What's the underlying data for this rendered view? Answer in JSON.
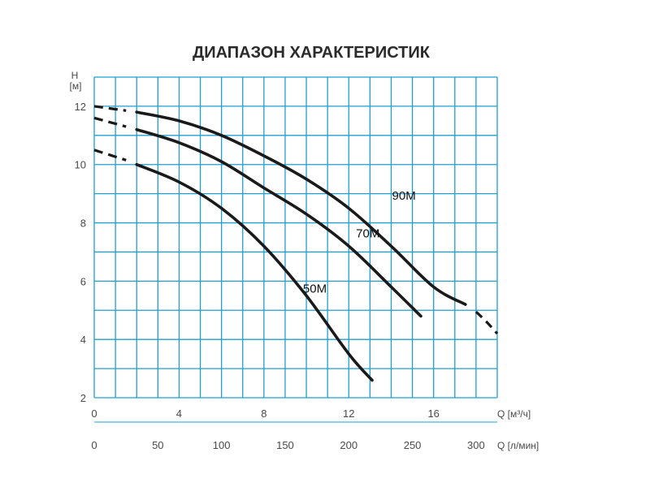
{
  "chart_data": {
    "type": "line",
    "title": "ДИАПАЗОН ХАРАКТЕРИСТИК",
    "ylabel_symbol": "H",
    "ylabel_unit": "[м]",
    "xlabel_top": "Q [м³/ч]",
    "xlabel_bottom": "Q [л/мин]",
    "xlim": [
      0,
      19
    ],
    "ylim": [
      2,
      13
    ],
    "grid": true,
    "x_ticks": [
      {
        "value": 0,
        "label": "0"
      },
      {
        "value": 4,
        "label": "4"
      },
      {
        "value": 8,
        "label": "8"
      },
      {
        "value": 12,
        "label": "12"
      },
      {
        "value": 16,
        "label": "16"
      }
    ],
    "x2_ticks": [
      {
        "value": 0,
        "label": "0"
      },
      {
        "value": 50,
        "label": "50"
      },
      {
        "value": 100,
        "label": "100"
      },
      {
        "value": 150,
        "label": "150"
      },
      {
        "value": 200,
        "label": "200"
      },
      {
        "value": 250,
        "label": "250"
      },
      {
        "value": 300,
        "label": "300"
      }
    ],
    "y_ticks": [
      {
        "value": 2,
        "label": "2"
      },
      {
        "value": 4,
        "label": "4"
      },
      {
        "value": 6,
        "label": "6"
      },
      {
        "value": 8,
        "label": "8"
      },
      {
        "value": 10,
        "label": "10"
      },
      {
        "value": 12,
        "label": "12"
      }
    ],
    "series": [
      {
        "name": "90M",
        "dashed_start": [
          [
            0,
            12.0
          ],
          [
            1.5,
            11.85
          ]
        ],
        "solid": [
          [
            2.0,
            11.8
          ],
          [
            4,
            11.5
          ],
          [
            6,
            11.0
          ],
          [
            8,
            10.3
          ],
          [
            10,
            9.5
          ],
          [
            12,
            8.5
          ],
          [
            14,
            7.2
          ],
          [
            16,
            5.8
          ],
          [
            17.5,
            5.2
          ]
        ],
        "dashed_end": [
          [
            18.0,
            4.95
          ],
          [
            18.5,
            4.6
          ],
          [
            19.0,
            4.2
          ]
        ],
        "label_at": [
          14.6,
          8.8
        ],
        "color": "#1a1a1a"
      },
      {
        "name": "70M",
        "dashed_start": [
          [
            0,
            11.6
          ],
          [
            1.5,
            11.3
          ]
        ],
        "solid": [
          [
            2.0,
            11.2
          ],
          [
            4,
            10.75
          ],
          [
            6,
            10.1
          ],
          [
            8,
            9.2
          ],
          [
            10,
            8.3
          ],
          [
            12,
            7.2
          ],
          [
            14,
            5.8
          ],
          [
            15.4,
            4.8
          ]
        ],
        "dashed_end": [],
        "label_at": [
          12.9,
          7.5
        ],
        "color": "#1a1a1a"
      },
      {
        "name": "50M",
        "dashed_start": [
          [
            0,
            10.5
          ],
          [
            1.5,
            10.15
          ]
        ],
        "solid": [
          [
            2.0,
            10.0
          ],
          [
            4,
            9.4
          ],
          [
            6,
            8.5
          ],
          [
            8,
            7.2
          ],
          [
            10,
            5.5
          ],
          [
            12,
            3.5
          ],
          [
            13.1,
            2.6
          ]
        ],
        "dashed_end": [],
        "label_at": [
          10.4,
          5.6
        ],
        "color": "#1a1a1a"
      }
    ],
    "grid_color": "#1f9fd0"
  }
}
